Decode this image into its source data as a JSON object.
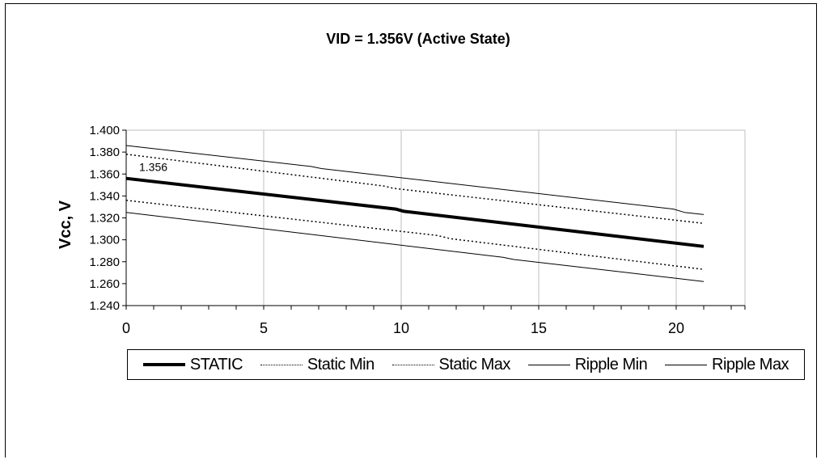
{
  "chart_data": {
    "type": "line",
    "title": "VID = 1.356V (Active State)",
    "xlabel": "",
    "ylabel": "Vcc, V",
    "xlim": [
      0,
      22.5
    ],
    "ylim": [
      1.24,
      1.4
    ],
    "x_ticks": [
      "0",
      "5",
      "10",
      "15",
      "20"
    ],
    "y_ticks": [
      "1.400",
      "1.380",
      "1.360",
      "1.340",
      "1.320",
      "1.300",
      "1.280",
      "1.260",
      "1.240"
    ],
    "grid": "vertical",
    "legend_position": "bottom",
    "annotation": "1.356",
    "series": [
      {
        "name": "STATIC",
        "style": "thick",
        "x": [
          0,
          9.8,
          10.1,
          21
        ],
        "y": [
          1.356,
          1.328,
          1.326,
          1.294
        ]
      },
      {
        "name": "Static Min",
        "style": "dotted",
        "x": [
          0,
          11.3,
          11.8,
          21
        ],
        "y": [
          1.336,
          1.304,
          1.301,
          1.273
        ]
      },
      {
        "name": "Static Max",
        "style": "dotted",
        "x": [
          0,
          9.4,
          9.7,
          21
        ],
        "y": [
          1.378,
          1.349,
          1.347,
          1.315
        ]
      },
      {
        "name": "Ripple Min",
        "style": "thin",
        "x": [
          0,
          13.7,
          14.1,
          21
        ],
        "y": [
          1.325,
          1.284,
          1.282,
          1.262
        ]
      },
      {
        "name": "Ripple Max",
        "style": "thin",
        "x": [
          0,
          6.7,
          7.1,
          19.9,
          20.3,
          21
        ],
        "y": [
          1.386,
          1.367,
          1.365,
          1.328,
          1.325,
          1.323
        ]
      }
    ]
  },
  "colors": {
    "line": "#000000",
    "grid": "#bfbfbf",
    "background": "#ffffff"
  }
}
